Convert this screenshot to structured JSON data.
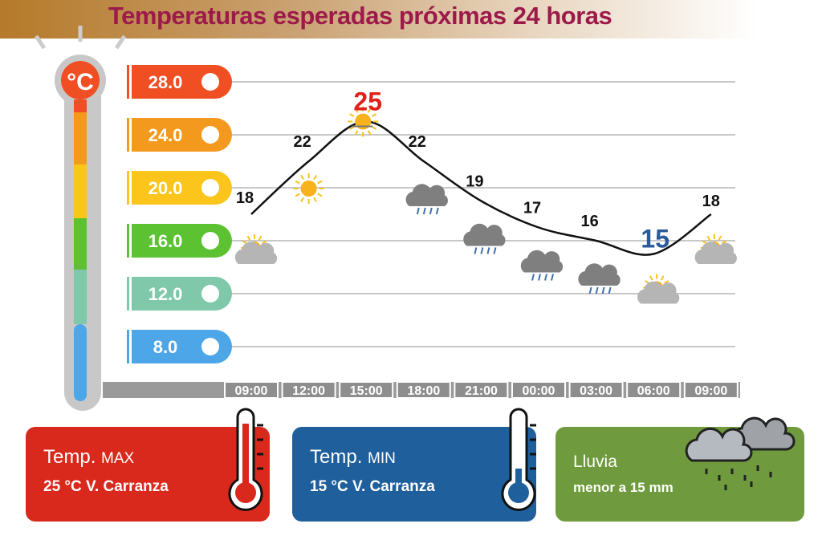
{
  "title": "Temperaturas esperadas próximas 24 horas",
  "thermometer_unit": "°C",
  "chart_data": {
    "type": "line",
    "title": "Temperaturas esperadas próximas 24 horas",
    "x": [
      "09:00",
      "12:00",
      "15:00",
      "18:00",
      "21:00",
      "00:00",
      "03:00",
      "06:00",
      "09:00"
    ],
    "values": [
      18,
      22,
      25,
      22,
      19,
      17,
      16,
      15,
      18
    ],
    "value_labels": [
      "18",
      "22",
      "25",
      "22",
      "19",
      "17",
      "16",
      "15",
      "18"
    ],
    "max_index": 2,
    "min_index": 7,
    "weather_icons": [
      "partly-cloudy",
      "sunny",
      "sunny-hazy",
      "rain",
      "rain",
      "rain",
      "rain",
      "partly-cloudy",
      "partly-cloudy"
    ],
    "yticks": [
      {
        "label": "28.0",
        "value": 28,
        "color": "#f04e23"
      },
      {
        "label": "24.0",
        "value": 24,
        "color": "#f39a1e"
      },
      {
        "label": "20.0",
        "value": 20,
        "color": "#fbc51c"
      },
      {
        "label": "16.0",
        "value": 16,
        "color": "#5cc232"
      },
      {
        "label": "12.0",
        "value": 12,
        "color": "#7fc8a9"
      },
      {
        "label": "8.0",
        "value": 8,
        "color": "#4ca6e8"
      }
    ],
    "ylim": [
      8,
      28
    ],
    "grid": true,
    "line_color": "#111111",
    "max_color": "#e0201b",
    "min_color": "#2b5a9c"
  },
  "cards": {
    "max": {
      "label": "Temp.",
      "sub": "MAX",
      "value": "25  °C  V. Carranza",
      "color": "#d9291c"
    },
    "min": {
      "label": "Temp.",
      "sub": "MIN",
      "value": "15 °C  V. Carranza",
      "color": "#1f5f9c"
    },
    "rain": {
      "label": "Lluvia",
      "value": "menor a 15 mm",
      "color": "#6f9a3e"
    }
  }
}
